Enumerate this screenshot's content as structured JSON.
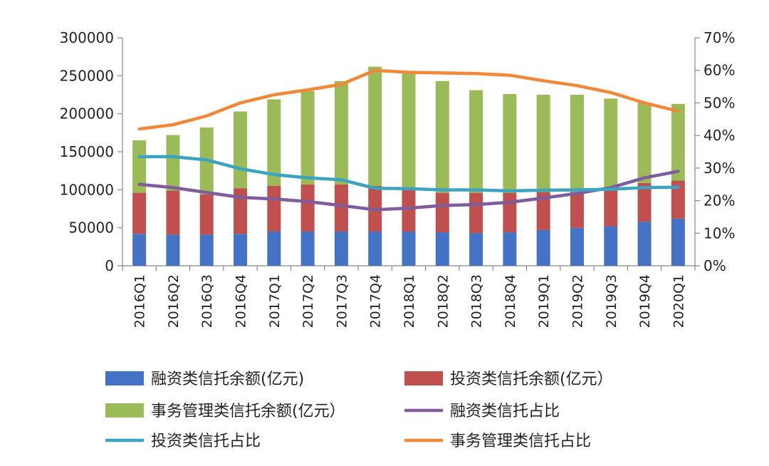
{
  "chart_data": {
    "type": "bar",
    "stacked": true,
    "categories": [
      "2016Q1",
      "2016Q2",
      "2016Q3",
      "2016Q4",
      "2017Q1",
      "2017Q2",
      "2017Q3",
      "2017Q4",
      "2018Q1",
      "2018Q2",
      "2018Q3",
      "2018Q4",
      "2019Q1",
      "2019Q2",
      "2019Q3",
      "2019Q4",
      "2020Q1"
    ],
    "y_left": {
      "ylim": [
        0,
        300000
      ],
      "ticks": [
        "300000",
        "250000",
        "200000",
        "150000",
        "100000",
        "50000",
        "0"
      ]
    },
    "y_right": {
      "ylim": [
        0,
        0.7
      ],
      "ticks": [
        "70%",
        "60%",
        "50%",
        "40%",
        "30%",
        "20%",
        "10%",
        "0%"
      ]
    },
    "bar_series": [
      {
        "name": "融资类信托余额(亿元)",
        "color": "#4472c4",
        "values": [
          42000,
          41000,
          41000,
          42000,
          45000,
          45000,
          45000,
          45000,
          45000,
          44000,
          43000,
          44000,
          47000,
          50000,
          52000,
          58000,
          62000
        ]
      },
      {
        "name": "投资类信托余额(亿元）",
        "color": "#c0504d",
        "values": [
          54000,
          58000,
          53000,
          60000,
          60000,
          62000,
          62000,
          60000,
          58000,
          52000,
          53000,
          52000,
          50000,
          47000,
          50000,
          51000,
          50000
        ]
      },
      {
        "name": "事务管理类信托余额(亿元）",
        "color": "#9bbb59",
        "values": [
          69000,
          73000,
          88000,
          101000,
          114000,
          123000,
          136000,
          157000,
          150000,
          147000,
          135000,
          130000,
          128000,
          128000,
          118000,
          106000,
          101000
        ]
      }
    ],
    "line_series": [
      {
        "name": "融资类信托占比",
        "color": "#7f5c9a",
        "values": [
          0.25,
          0.24,
          0.225,
          0.21,
          0.205,
          0.197,
          0.185,
          0.172,
          0.177,
          0.185,
          0.188,
          0.195,
          0.208,
          0.222,
          0.24,
          0.27,
          0.29
        ]
      },
      {
        "name": "投资类信托占比",
        "color": "#3ca4bf",
        "values": [
          0.335,
          0.335,
          0.325,
          0.298,
          0.28,
          0.27,
          0.264,
          0.238,
          0.237,
          0.233,
          0.233,
          0.23,
          0.232,
          0.233,
          0.235,
          0.24,
          0.241
        ]
      },
      {
        "name": "事务管理类信托占比",
        "color": "#f0883a",
        "values": [
          0.42,
          0.433,
          0.46,
          0.5,
          0.525,
          0.54,
          0.557,
          0.6,
          0.594,
          0.592,
          0.59,
          0.585,
          0.568,
          0.553,
          0.532,
          0.5,
          0.475
        ]
      }
    ],
    "legend": [
      "融资类信托余额(亿元)",
      "投资类信托余额(亿元）",
      "事务管理类信托余额(亿元）",
      "融资类信托占比",
      "投资类信托占比",
      "事务管理类信托占比"
    ],
    "legend_placement": "bottom",
    "grid": false
  }
}
